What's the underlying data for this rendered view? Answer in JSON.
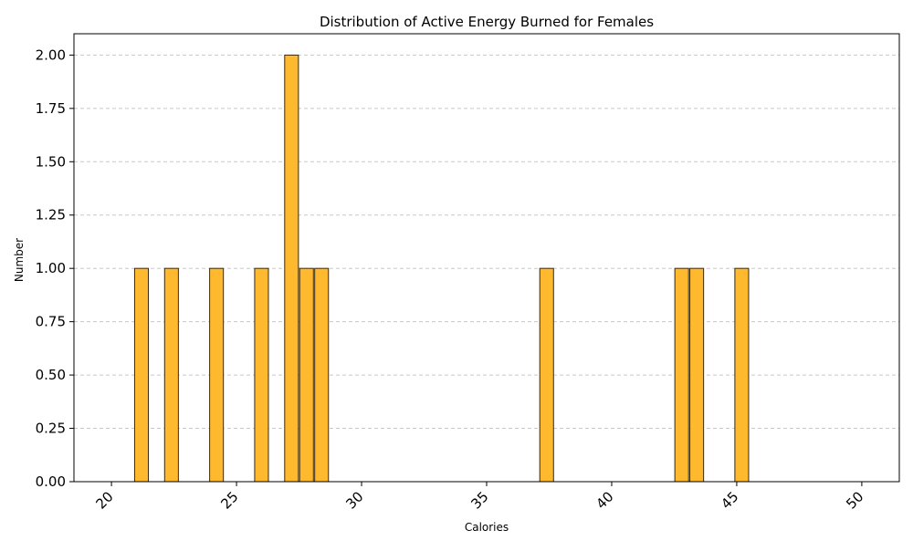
{
  "chart_data": {
    "type": "bar",
    "title": "Distribution of Active Energy Burned for Females",
    "xlabel": "Calories",
    "ylabel": "Number",
    "xlim": [
      18.5,
      51.5
    ],
    "ylim": [
      0,
      2.1
    ],
    "x_ticks": [
      20,
      25,
      30,
      35,
      40,
      45,
      50
    ],
    "x_tick_labels": [
      "20",
      "25",
      "30",
      "35",
      "40",
      "45",
      "50"
    ],
    "y_ticks": [
      0,
      0.25,
      0.5,
      0.75,
      1.0,
      1.25,
      1.5,
      1.75,
      2.0
    ],
    "y_tick_labels": [
      "0.00",
      "0.25",
      "0.50",
      "0.75",
      "1.00",
      "1.25",
      "1.50",
      "1.75",
      "2.00"
    ],
    "bin_width": 0.6,
    "bins": [
      {
        "x": 20.0,
        "count": 0
      },
      {
        "x": 20.6,
        "count": 0
      },
      {
        "x": 21.2,
        "count": 1
      },
      {
        "x": 21.8,
        "count": 0
      },
      {
        "x": 22.4,
        "count": 1
      },
      {
        "x": 23.0,
        "count": 0
      },
      {
        "x": 23.6,
        "count": 0
      },
      {
        "x": 24.2,
        "count": 1
      },
      {
        "x": 24.8,
        "count": 0
      },
      {
        "x": 25.4,
        "count": 0
      },
      {
        "x": 26.0,
        "count": 1
      },
      {
        "x": 26.6,
        "count": 0
      },
      {
        "x": 27.2,
        "count": 2
      },
      {
        "x": 27.8,
        "count": 1
      },
      {
        "x": 28.4,
        "count": 1
      },
      {
        "x": 29.0,
        "count": 0
      },
      {
        "x": 29.6,
        "count": 0
      },
      {
        "x": 30.2,
        "count": 0
      },
      {
        "x": 30.8,
        "count": 0
      },
      {
        "x": 31.4,
        "count": 0
      },
      {
        "x": 32.0,
        "count": 0
      },
      {
        "x": 32.6,
        "count": 0
      },
      {
        "x": 33.2,
        "count": 0
      },
      {
        "x": 33.8,
        "count": 0
      },
      {
        "x": 34.4,
        "count": 0
      },
      {
        "x": 35.0,
        "count": 0
      },
      {
        "x": 35.6,
        "count": 0
      },
      {
        "x": 36.2,
        "count": 0
      },
      {
        "x": 36.8,
        "count": 0
      },
      {
        "x": 37.4,
        "count": 1
      },
      {
        "x": 38.0,
        "count": 0
      },
      {
        "x": 38.6,
        "count": 0
      },
      {
        "x": 39.2,
        "count": 0
      },
      {
        "x": 39.8,
        "count": 0
      },
      {
        "x": 40.4,
        "count": 0
      },
      {
        "x": 41.0,
        "count": 0
      },
      {
        "x": 41.6,
        "count": 0
      },
      {
        "x": 42.2,
        "count": 0
      },
      {
        "x": 42.8,
        "count": 1
      },
      {
        "x": 43.4,
        "count": 1
      },
      {
        "x": 44.0,
        "count": 0
      },
      {
        "x": 44.6,
        "count": 0
      },
      {
        "x": 45.2,
        "count": 1
      },
      {
        "x": 45.8,
        "count": 0
      },
      {
        "x": 46.4,
        "count": 0
      },
      {
        "x": 47.0,
        "count": 0
      },
      {
        "x": 47.6,
        "count": 0
      },
      {
        "x": 48.2,
        "count": 0
      },
      {
        "x": 48.8,
        "count": 0
      },
      {
        "x": 49.4,
        "count": 0
      }
    ],
    "grid": "y-dashed",
    "colors": {
      "bar_fill": "#ffb92e",
      "bar_edge": "#3a2a10",
      "grid": "#c8c8c8",
      "axis": "#000000"
    }
  }
}
